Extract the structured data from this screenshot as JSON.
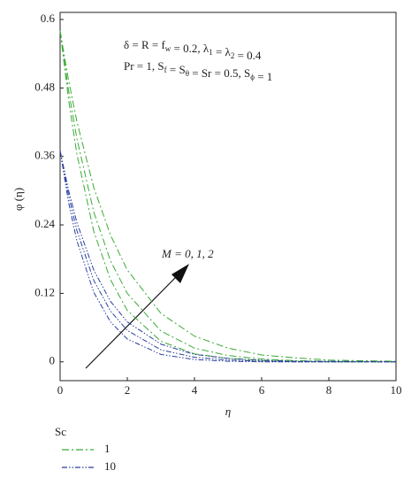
{
  "chart_data": {
    "type": "line",
    "xlabel": "η",
    "ylabel": "φ (η)",
    "xlim": [
      0,
      10
    ],
    "ylim": [
      -0.033,
      0.6
    ],
    "xticks": [
      0,
      2,
      4,
      6,
      8,
      10
    ],
    "yticks": [
      0,
      0.12,
      0.24,
      0.36,
      0.48,
      0.6
    ],
    "x": [
      0,
      0.25,
      0.5,
      1,
      1.5,
      2,
      3,
      4,
      5,
      6,
      7,
      8,
      10
    ],
    "legend_title": "Sc",
    "groups": [
      {
        "name": "1",
        "color": "#3aaa35",
        "series": [
          {
            "values": [
              0.58,
              0.46,
              0.364,
              0.229,
              0.144,
              0.09,
              0.036,
              0.014,
              0.006,
              0.002,
              0.001,
              0,
              0
            ]
          },
          {
            "values": [
              0.58,
              0.476,
              0.391,
              0.263,
              0.177,
              0.12,
              0.054,
              0.024,
              0.011,
              0.005,
              0.002,
              0.001,
              0
            ]
          },
          {
            "values": [
              0.58,
              0.494,
              0.421,
              0.306,
              0.222,
              0.161,
              0.085,
              0.045,
              0.024,
              0.012,
              0.007,
              0.003,
              0.001
            ]
          }
        ]
      },
      {
        "name": "10",
        "color": "#2a3f9e",
        "series": [
          {
            "values": [
              0.37,
              0.28,
              0.212,
              0.122,
              0.07,
              0.04,
              0.013,
              0.004,
              0.001,
              0,
              0,
              0,
              0
            ]
          },
          {
            "values": [
              0.37,
              0.292,
              0.23,
              0.143,
              0.089,
              0.055,
              0.021,
              0.008,
              0.003,
              0.001,
              0,
              0,
              0
            ]
          },
          {
            "values": [
              0.37,
              0.301,
              0.244,
              0.161,
              0.106,
              0.07,
              0.031,
              0.013,
              0.006,
              0.003,
              0.001,
              0.001,
              0
            ]
          }
        ]
      }
    ],
    "annotations": [
      [
        "δ = R = f",
        {
          "sub": "w"
        },
        " = 0.2, λ",
        {
          "sub": "1"
        },
        " = λ",
        {
          "sub": "2"
        },
        " = 0.4"
      ],
      [
        "Pr = 1, S",
        {
          "sub": "f"
        },
        " = S",
        {
          "sub": "θ"
        },
        " = Sr = 0.5, S",
        {
          "sub": "ϕ"
        },
        " = 1"
      ]
    ],
    "arrow_label": "M = 0, 1, 2"
  }
}
